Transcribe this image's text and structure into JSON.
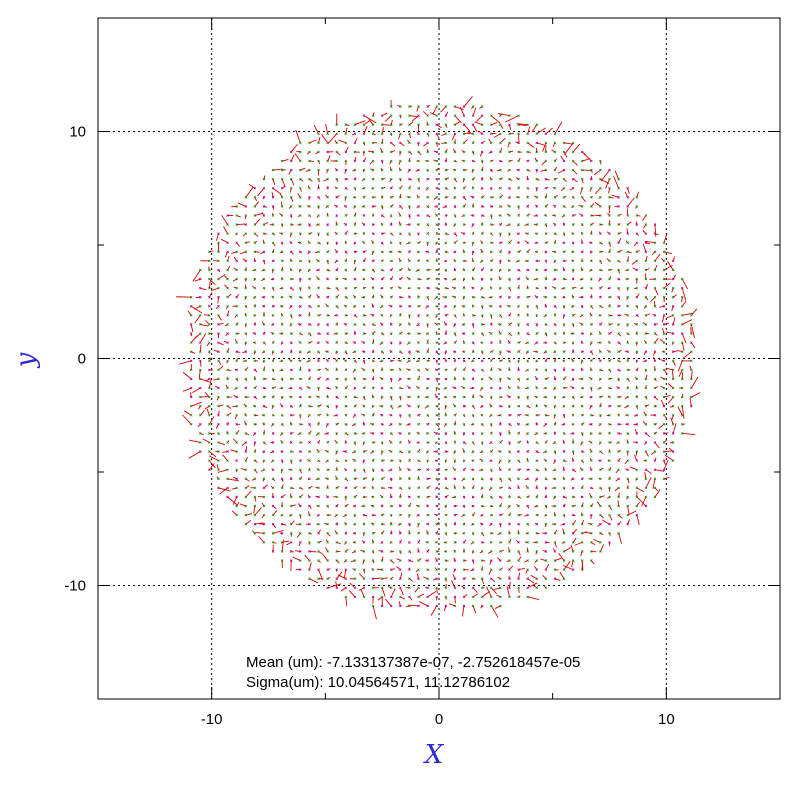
{
  "chart_data": {
    "type": "scatter",
    "title": "",
    "xlabel": "X",
    "ylabel": "y",
    "xlim": [
      -15,
      15
    ],
    "ylim": [
      -15,
      15
    ],
    "xticks": [
      -10,
      0,
      10
    ],
    "yticks": [
      -10,
      0,
      10
    ],
    "tick_labels": {
      "x": [
        "-10",
        "0",
        "10"
      ],
      "y": [
        "-10",
        "0",
        "10"
      ]
    },
    "grid": true,
    "grid_style": "dotted",
    "description_points": {
      "layout": "regular grid of measurement points inside a circular field",
      "field_radius": 11.3,
      "grid_step": 0.4,
      "marker_colors": [
        "#00aa00",
        "#b000b0"
      ],
      "vector_color": "#dd0000",
      "vector_note": "small residual vectors, larger near the edge"
    },
    "annotations": [
      {
        "id": "mean",
        "text": "Mean (um): -7.133137387e-07, -2.752618457e-05"
      },
      {
        "id": "sigma",
        "text": "Sigma(um): 10.04564571, 11.12786102"
      }
    ],
    "colors": {
      "axis_title": "#2a2ad0",
      "grid": "#000000",
      "point_green": "#00aa00",
      "point_magenta": "#b000b0",
      "vector": "#dd0000"
    }
  }
}
